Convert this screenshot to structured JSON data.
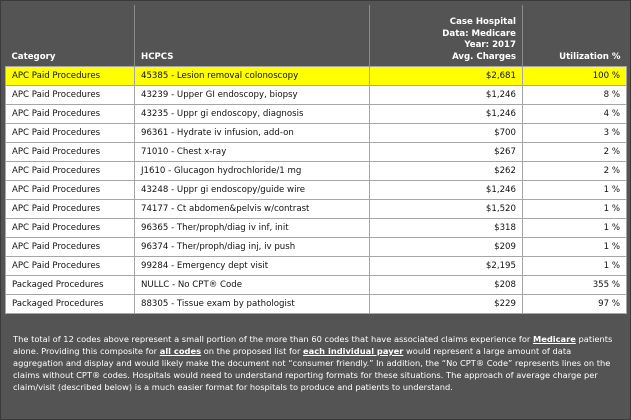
{
  "header": {
    "category": "Category",
    "hcpcs": "HCPCS",
    "charges_line1": "Case Hospital",
    "charges_line2": "Data: Medicare",
    "charges_line3": "Year: 2017",
    "charges_line4": "Avg. Charges",
    "utilization": "Utilization %"
  },
  "rows": [
    {
      "category": "APC Paid Procedures",
      "hcpcs": "45385 - Lesion removal colonoscopy",
      "charges": "$2,681",
      "utilization": "100 %",
      "highlight": true
    },
    {
      "category": "APC Paid Procedures",
      "hcpcs": "43239 - Upper GI endoscopy, biopsy",
      "charges": "$1,246",
      "utilization": "8 %"
    },
    {
      "category": "APC Paid Procedures",
      "hcpcs": "43235 - Uppr gi endoscopy, diagnosis",
      "charges": "$1,246",
      "utilization": "4 %"
    },
    {
      "category": "APC Paid Procedures",
      "hcpcs": "96361 - Hydrate iv infusion, add-on",
      "charges": "$700",
      "utilization": "3 %"
    },
    {
      "category": "APC Paid Procedures",
      "hcpcs": "71010 - Chest x-ray",
      "charges": "$267",
      "utilization": "2 %"
    },
    {
      "category": "APC Paid Procedures",
      "hcpcs": "J1610 - Glucagon hydrochloride/1 mg",
      "charges": "$262",
      "utilization": "2 %"
    },
    {
      "category": "APC Paid Procedures",
      "hcpcs": "43248 - Uppr gi endoscopy/guide wire",
      "charges": "$1,246",
      "utilization": "1 %"
    },
    {
      "category": "APC Paid Procedures",
      "hcpcs": "74177 - Ct abdomen&pelvis w/contrast",
      "charges": "$1,520",
      "utilization": "1 %"
    },
    {
      "category": "APC Paid Procedures",
      "hcpcs": "96365 - Ther/proph/diag iv inf, init",
      "charges": "$318",
      "utilization": "1 %"
    },
    {
      "category": "APC Paid Procedures",
      "hcpcs": "96374 - Ther/proph/diag inj, iv push",
      "charges": "$209",
      "utilization": "1 %"
    },
    {
      "category": "APC Paid Procedures",
      "hcpcs": "99284 - Emergency dept visit",
      "charges": "$2,195",
      "utilization": "1 %"
    },
    {
      "category": "Packaged Procedures",
      "hcpcs": "NULLC - No CPT® Code",
      "charges": "$208",
      "utilization": "355 %"
    },
    {
      "category": "Packaged Procedures",
      "hcpcs": "88305 - Tissue exam by pathologist",
      "charges": "$229",
      "utilization": "97 %"
    }
  ],
  "footer": {
    "t1": "The total of 12 codes above represent a small portion of the more than 60 codes that have associated claims experience for ",
    "b1": "Medicare",
    "t2": " patients alone. Providing this composite for ",
    "b2": "all codes",
    "t3": " on the proposed list for ",
    "b3": "each individual payer",
    "t4": " would represent a large amount of data aggregation and display and would likely make the document not “consumer friendly.” In addition, the “No CPT® Code” represents lines on the claims without CPT® codes. Hospitals would need to understand reporting formats for these situations. The approach of average charge per claim/visit (described below) is a much easier format for hospitals to produce and patients to understand."
  }
}
